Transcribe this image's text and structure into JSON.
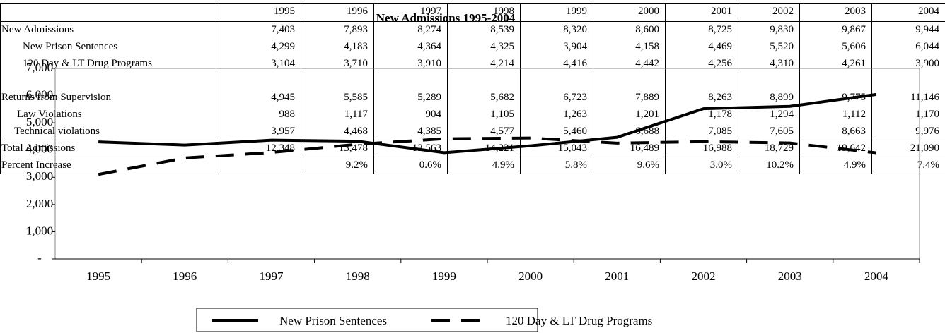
{
  "table": {
    "header": [
      "1995",
      "1996",
      "1997",
      "1998",
      "1999",
      "2000",
      "2001",
      "2002",
      "2003",
      "2004"
    ],
    "rows": [
      {
        "label": "New Admissions",
        "values": [
          "7,403",
          "7,893",
          "8,274",
          "8,539",
          "8,320",
          "8,600",
          "8,725",
          "9,830",
          "9,867",
          "9,944"
        ]
      },
      {
        "label": "New Prison Sentences",
        "values": [
          "4,299",
          "4,183",
          "4,364",
          "4,325",
          "3,904",
          "4,158",
          "4,469",
          "5,520",
          "5,606",
          "6,044"
        ]
      },
      {
        "label": "120 Day & LT Drug Programs",
        "values": [
          "3,104",
          "3,710",
          "3,910",
          "4,214",
          "4,416",
          "4,442",
          "4,256",
          "4,310",
          "4,261",
          "3,900"
        ]
      },
      {
        "label": "Returns from Supervision",
        "values": [
          "4,945",
          "5,585",
          "5,289",
          "5,682",
          "6,723",
          "7,889",
          "8,263",
          "8,899",
          "9,775",
          "11,146"
        ]
      },
      {
        "label": "Law Violations",
        "values": [
          "988",
          "1,117",
          "904",
          "1,105",
          "1,263",
          "1,201",
          "1,178",
          "1,294",
          "1,112",
          "1,170"
        ]
      },
      {
        "label": "Technical violations",
        "values": [
          "3,957",
          "4,468",
          "4,385",
          "4,577",
          "5,460",
          "6,688",
          "7,085",
          "7,605",
          "8,663",
          "9,976"
        ]
      },
      {
        "label": "Total Admissions",
        "values": [
          "12,348",
          "13,478",
          "13,563",
          "14,221",
          "15,043",
          "16,489",
          "16,988",
          "18,729",
          "19,642",
          "21,090"
        ]
      },
      {
        "label": "Percent Increase",
        "values": [
          null,
          "9.2%",
          "0.6%",
          "4.9%",
          "5.8%",
          "9.6%",
          "3.0%",
          "10.2%",
          "4.9%",
          "7.4%"
        ]
      }
    ]
  },
  "chart_data": {
    "type": "line",
    "title": "New Admissions 1995-2004",
    "categories": [
      "1995",
      "1996",
      "1997",
      "1998",
      "1999",
      "2000",
      "2001",
      "2002",
      "2003",
      "2004"
    ],
    "series": [
      {
        "name": "New Prison Sentences",
        "color": "#000000",
        "dash": "solid",
        "values": [
          4299,
          4183,
          4364,
          4325,
          3904,
          4158,
          4469,
          5520,
          5606,
          6044
        ]
      },
      {
        "name": "120 Day & LT Drug Programs",
        "color": "#000000",
        "dash": "dashed",
        "values": [
          3104,
          3710,
          3910,
          4214,
          4416,
          4442,
          4256,
          4310,
          4261,
          3900
        ]
      }
    ],
    "ylim": [
      0,
      7000
    ],
    "yticks": [
      {
        "value": 0,
        "label": "-"
      },
      {
        "value": 1000,
        "label": "1,000"
      },
      {
        "value": 2000,
        "label": "2,000"
      },
      {
        "value": 3000,
        "label": "3,000"
      },
      {
        "value": 4000,
        "label": "4,000"
      },
      {
        "value": 5000,
        "label": "5,000"
      },
      {
        "value": 6000,
        "label": "6,000"
      },
      {
        "value": 7000,
        "label": "7,000"
      }
    ],
    "legend": "bottom"
  }
}
